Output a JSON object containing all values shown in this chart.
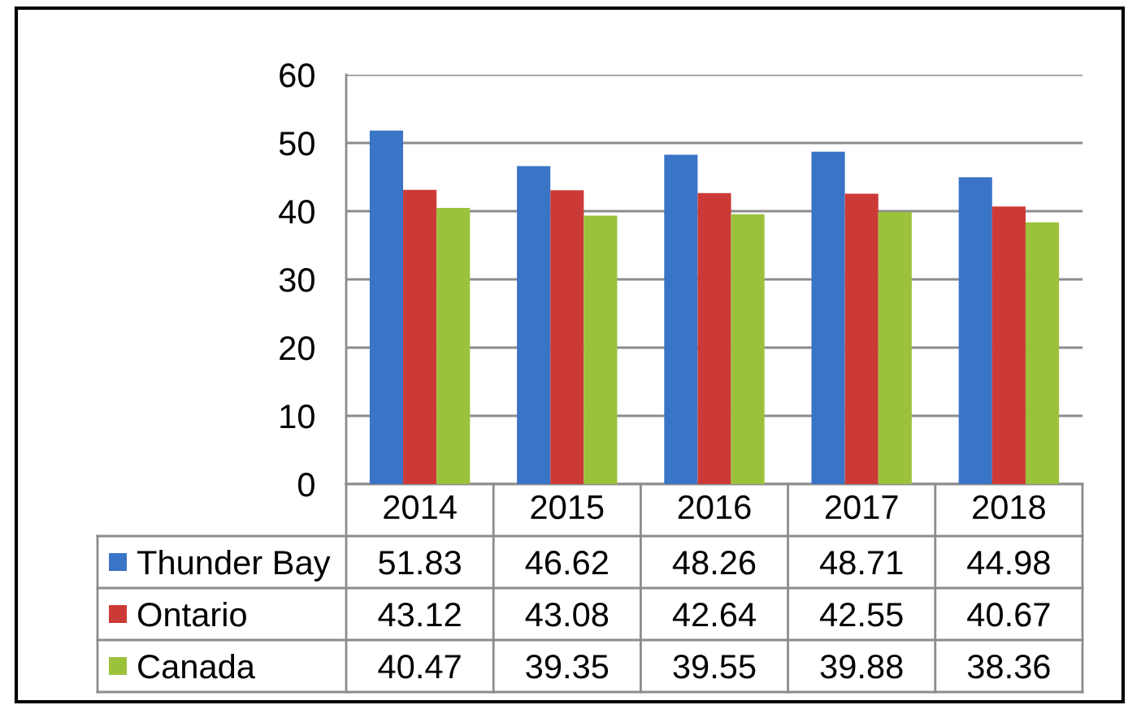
{
  "chart_data": {
    "type": "bar",
    "categories": [
      "2014",
      "2015",
      "2016",
      "2017",
      "2018"
    ],
    "series": [
      {
        "name": "Thunder Bay",
        "color": "#3a74c6",
        "values": [
          51.83,
          46.62,
          48.26,
          48.71,
          44.98
        ]
      },
      {
        "name": "Ontario",
        "color": "#cc3a37",
        "values": [
          43.12,
          43.08,
          42.64,
          42.55,
          40.67
        ]
      },
      {
        "name": "Canada",
        "color": "#9cc23c",
        "values": [
          40.47,
          39.35,
          39.55,
          39.88,
          38.36
        ]
      }
    ],
    "ylim": [
      0,
      60
    ],
    "yticks": [
      0,
      10,
      20,
      30,
      40,
      50,
      60
    ],
    "grid": "y",
    "data_labels": true,
    "legend": "bottom"
  }
}
